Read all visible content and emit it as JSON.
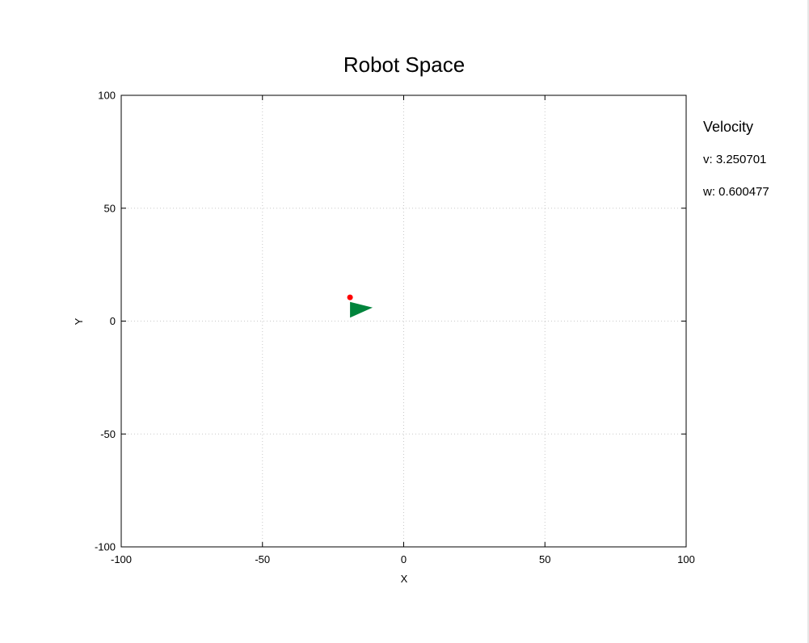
{
  "window_title": "Robot Space",
  "chart_data": {
    "type": "scatter",
    "title": "Robot Space",
    "xlabel": "X",
    "ylabel": "Y",
    "xlim": [
      -100,
      100
    ],
    "ylim": [
      -100,
      100
    ],
    "xticks": [
      "-100",
      "-50",
      "0",
      "50",
      "100"
    ],
    "yticks": [
      "100",
      "50",
      "0",
      "-50",
      "-100"
    ],
    "xtick_values": [
      -100,
      -50,
      0,
      50,
      100
    ],
    "ytick_values": [
      100,
      50,
      0,
      -50,
      -100
    ],
    "grid": true,
    "robot": {
      "color": "#00843c",
      "vertices": [
        [
          -19,
          8.5
        ],
        [
          -11,
          6
        ],
        [
          -19,
          1.5
        ]
      ]
    },
    "marker": {
      "color": "#ff0000",
      "x": -19,
      "y": 10.5
    }
  },
  "velocity_panel": {
    "title": "Velocity",
    "v_text": "v: 3.250701",
    "w_text": "w: 0.600477"
  }
}
